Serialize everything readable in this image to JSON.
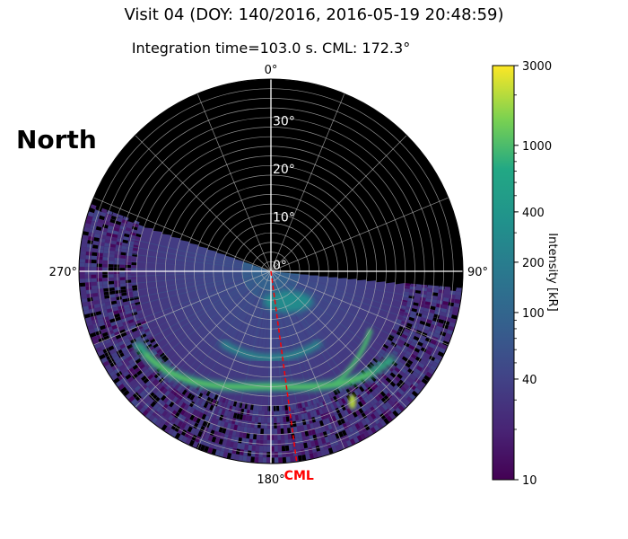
{
  "figure": {
    "title": "Visit 04 (DOY: 140/2016, 2016-05-19 20:48:59)",
    "subtitle": "Integration time=103.0 s. CML: 172.3°",
    "hemisphere_label": "North",
    "cml_label": "CML"
  },
  "colors": {
    "background_disk": "#000000",
    "grid": "#bbbbbb",
    "cml_line": "#ff0000",
    "colormap": "viridis"
  },
  "chart_data": {
    "type": "heatmap",
    "projection": "polar",
    "angular_tick_labels": [
      "0°",
      "90°",
      "180°",
      "270°"
    ],
    "radial_tick_labels": [
      "0°",
      "10°",
      "20°",
      "30°"
    ],
    "radial_tick_values": [
      0,
      10,
      20,
      30
    ],
    "radial_max": 40,
    "radial_grid_spacing": 2,
    "angular_grid_spacing": 22.5,
    "cml_longitude": 172.3,
    "colorbar": {
      "label": "Intensity [kR]",
      "scale": "log",
      "range": [
        10,
        3000
      ],
      "tick_values": [
        10,
        40,
        100,
        200,
        400,
        1000,
        3000
      ],
      "tick_labels": [
        "10",
        "40",
        "100",
        "200",
        "400",
        "1000",
        "3000"
      ]
    },
    "emission_features": [
      {
        "name": "main oval",
        "longitude_range": [
          125,
          242
        ],
        "colatitude": 28,
        "intensity_kR": 800
      },
      {
        "name": "inner arc",
        "longitude_range": [
          145,
          215
        ],
        "colatitude": 18,
        "intensity_kR": 400
      },
      {
        "name": "dawn arc",
        "longitude_range": [
          120,
          150
        ],
        "colatitude": 24,
        "intensity_kR": 1000
      },
      {
        "name": "noon spot",
        "longitude_range": [
          160,
          185
        ],
        "colatitude": 6,
        "intensity_kR": 300
      },
      {
        "name": "bright spot",
        "longitude_range": [
          146,
          150
        ],
        "colatitude": 32,
        "intensity_kR": 2000
      }
    ]
  }
}
